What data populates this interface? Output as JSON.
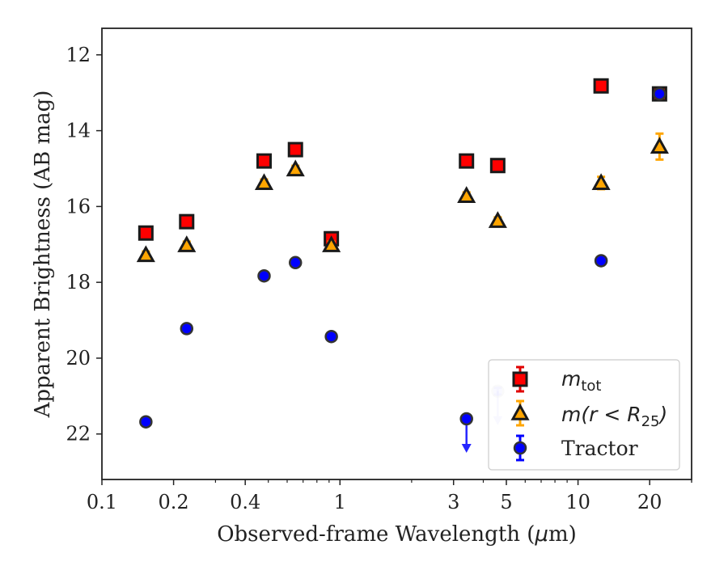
{
  "chart_data": {
    "type": "scatter",
    "xscale": "log",
    "yinverted": true,
    "xlim": [
      0.1,
      30
    ],
    "ylim": [
      23.2,
      11.3
    ],
    "xlabel_prefix": "Observed-frame Wavelength (",
    "xlabel_mu": "μ",
    "xlabel_suffix": "m)",
    "ylabel": "Apparent Brightness (AB mag)",
    "x_major_ticks": [
      {
        "value": 0.1,
        "label": "0.1"
      },
      {
        "value": 0.2,
        "label": "0.2"
      },
      {
        "value": 0.4,
        "label": "0.4"
      },
      {
        "value": 1,
        "label": "1"
      },
      {
        "value": 3,
        "label": "3"
      },
      {
        "value": 5,
        "label": "5"
      },
      {
        "value": 10,
        "label": "10"
      },
      {
        "value": 20,
        "label": "20"
      }
    ],
    "y_ticks": [
      12,
      14,
      16,
      18,
      20,
      22
    ],
    "legend_position": "lower-right",
    "series": [
      {
        "name": "m_tot",
        "legend_main": "m",
        "legend_sub": "tot",
        "marker": "square",
        "color": "#ff0000",
        "edgecolor": "#1a1a1a",
        "errcolor": "#e00000",
        "points": [
          {
            "x": 0.153,
            "y": 16.7,
            "err": 0.05
          },
          {
            "x": 0.227,
            "y": 16.4,
            "err": 0.05
          },
          {
            "x": 0.48,
            "y": 14.8,
            "err": 0.05
          },
          {
            "x": 0.65,
            "y": 14.5,
            "err": 0.05
          },
          {
            "x": 0.92,
            "y": 16.85,
            "err": 0.05
          },
          {
            "x": 3.4,
            "y": 14.8,
            "err": 0.05
          },
          {
            "x": 4.6,
            "y": 14.92,
            "err": 0.05
          },
          {
            "x": 12.5,
            "y": 12.82,
            "err": 0.05
          },
          {
            "x": 22,
            "y": 13.03,
            "err": 0.05
          }
        ]
      },
      {
        "name": "m(r<R25)",
        "legend_main": "m(r < R",
        "legend_sub": "25",
        "legend_close": ")",
        "marker": "triangle",
        "color": "#ffa500",
        "edgecolor": "#1a1a1a",
        "errcolor": "#ffa500",
        "points": [
          {
            "x": 0.153,
            "y": 17.28,
            "err": 0.05
          },
          {
            "x": 0.227,
            "y": 17.02,
            "err": 0.05
          },
          {
            "x": 0.48,
            "y": 15.38,
            "err": 0.05
          },
          {
            "x": 0.65,
            "y": 15.02,
            "err": 0.05
          },
          {
            "x": 0.92,
            "y": 17.02,
            "err": 0.05
          },
          {
            "x": 3.4,
            "y": 15.72,
            "err": 0.05
          },
          {
            "x": 4.6,
            "y": 16.38,
            "err": 0.05
          },
          {
            "x": 12.5,
            "y": 15.38,
            "err": 0.12
          },
          {
            "x": 22,
            "y": 14.42,
            "err": 0.3
          }
        ]
      },
      {
        "name": "Tractor",
        "legend_main": "Tractor",
        "marker": "circle",
        "color": "#0000ff",
        "edgecolor": "#333333",
        "errcolor": "#0000ff",
        "points": [
          {
            "x": 0.153,
            "y": 21.68,
            "err": 0.05
          },
          {
            "x": 0.227,
            "y": 19.22,
            "err": 0.05
          },
          {
            "x": 0.48,
            "y": 17.83,
            "err": 0.05
          },
          {
            "x": 0.65,
            "y": 17.48,
            "err": 0.05
          },
          {
            "x": 0.92,
            "y": 19.43,
            "err": 0.05
          },
          {
            "x": 3.4,
            "y": 21.6,
            "err": 0.05,
            "upper_limit": true
          },
          {
            "x": 4.6,
            "y": 20.87,
            "err": 0.05,
            "upper_limit": true,
            "faded": true
          },
          {
            "x": 12.5,
            "y": 17.43,
            "err": 0.05
          },
          {
            "x": 22,
            "y": 13.03,
            "err": 0.05
          }
        ]
      }
    ]
  }
}
